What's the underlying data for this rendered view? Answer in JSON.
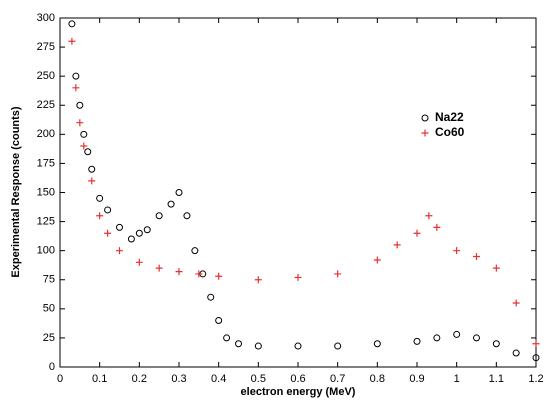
{
  "chart_data": {
    "type": "scatter",
    "xlabel": "electron energy (MeV)",
    "ylabel": "Experimental Response (counts)",
    "xlim": [
      0,
      1.2
    ],
    "ylim": [
      0,
      300
    ],
    "xticks": [
      0,
      0.1,
      0.2,
      0.3,
      0.4,
      0.5,
      0.6,
      0.7,
      0.8,
      0.9,
      1,
      1.1,
      1.2
    ],
    "yticks": [
      0,
      25,
      50,
      75,
      100,
      125,
      150,
      175,
      200,
      225,
      250,
      275,
      300
    ],
    "grid": false,
    "legend": "right",
    "series": [
      {
        "name": "Na22",
        "color": "#000000",
        "marker": "circle",
        "x": [
          0.03,
          0.04,
          0.05,
          0.06,
          0.07,
          0.08,
          0.1,
          0.12,
          0.15,
          0.18,
          0.2,
          0.22,
          0.25,
          0.28,
          0.3,
          0.32,
          0.34,
          0.36,
          0.38,
          0.4,
          0.42,
          0.45,
          0.5,
          0.6,
          0.7,
          0.8,
          0.9,
          0.95,
          1.0,
          1.05,
          1.1,
          1.15,
          1.2
        ],
        "values": [
          295,
          250,
          225,
          200,
          185,
          170,
          145,
          135,
          120,
          110,
          115,
          118,
          130,
          140,
          150,
          130,
          100,
          80,
          60,
          40,
          25,
          20,
          18,
          18,
          18,
          20,
          22,
          25,
          28,
          25,
          20,
          12,
          8
        ]
      },
      {
        "name": "Co60",
        "color": "#e83030",
        "marker": "plus",
        "x": [
          0.03,
          0.04,
          0.05,
          0.06,
          0.08,
          0.1,
          0.12,
          0.15,
          0.2,
          0.25,
          0.3,
          0.35,
          0.4,
          0.5,
          0.6,
          0.7,
          0.8,
          0.85,
          0.9,
          0.93,
          0.95,
          1.0,
          1.05,
          1.1,
          1.15,
          1.2
        ],
        "values": [
          280,
          240,
          210,
          190,
          160,
          130,
          115,
          100,
          90,
          85,
          82,
          80,
          78,
          75,
          77,
          80,
          92,
          105,
          115,
          130,
          120,
          100,
          95,
          85,
          55,
          20
        ]
      }
    ]
  }
}
